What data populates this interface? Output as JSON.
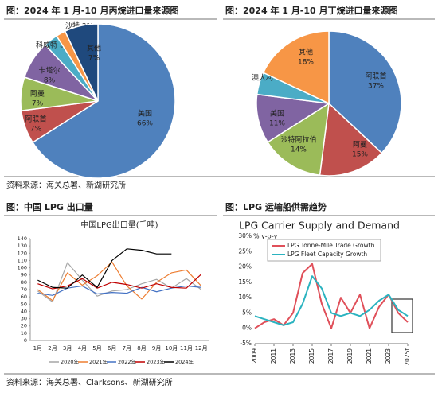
{
  "sources": [
    "资料来源：海关总署、新湖研究所",
    "资料来源：海关总署、Clarksons、新湖研究所"
  ],
  "chart_data": [
    {
      "type": "pie",
      "caption": "图：2024 年 1 月-10 月丙烷进口量来源图",
      "categories": [
        "美国",
        "阿联酋",
        "阿曼",
        "卡塔尔",
        "科威特",
        "沙特",
        "其他"
      ],
      "values": [
        66,
        7,
        7,
        8,
        3,
        2,
        7
      ],
      "value_labels": [
        "66%",
        "7%",
        "7%",
        "8%",
        "3%",
        "2%",
        "7%"
      ],
      "colors": [
        "#4f81bd",
        "#c0504d",
        "#9bbb59",
        "#8064a2",
        "#4bacc6",
        "#f79646",
        "#1f497d"
      ]
    },
    {
      "type": "pie",
      "caption": "图：2024 年 1 月-10 月丁烷进口量来源图",
      "categories": [
        "阿联酋",
        "阿曼",
        "沙特阿拉伯",
        "美国",
        "澳大利亚",
        "其他"
      ],
      "values": [
        37,
        15,
        14,
        11,
        5,
        18
      ],
      "value_labels": [
        "37%",
        "15%",
        "14%",
        "11%",
        "5%",
        "18%"
      ],
      "colors": [
        "#4f81bd",
        "#c0504d",
        "#9bbb59",
        "#8064a2",
        "#4bacc6",
        "#f79646"
      ]
    },
    {
      "type": "line",
      "caption": "图：中国 LPG 出口量",
      "title": "中国LPG出口量(千吨)",
      "categories": [
        "1月",
        "2月",
        "3月",
        "4月",
        "5月",
        "6月",
        "7月",
        "8月",
        "9月",
        "10月",
        "11月",
        "12月"
      ],
      "series": [
        {
          "name": "2020年",
          "color": "#a6a6a6",
          "values": [
            68,
            53,
            107,
            83,
            61,
            68,
            70,
            78,
            84,
            72,
            85,
            70
          ]
        },
        {
          "name": "2021年",
          "color": "#ed7d31",
          "values": [
            70,
            55,
            93,
            76,
            89,
            108,
            75,
            57,
            80,
            93,
            97,
            75
          ]
        },
        {
          "name": "2022年",
          "color": "#4472c4",
          "values": [
            65,
            62,
            72,
            75,
            64,
            66,
            65,
            73,
            67,
            72,
            75,
            73
          ]
        },
        {
          "name": "2023年",
          "color": "#c00000",
          "values": [
            78,
            71,
            75,
            85,
            72,
            80,
            77,
            72,
            78,
            73,
            72,
            91
          ]
        },
        {
          "name": "2024年",
          "color": "#000000",
          "values": [
            83,
            73,
            72,
            90,
            73,
            110,
            126,
            124,
            119,
            119,
            null,
            null
          ]
        }
      ],
      "ylim": [
        0,
        140
      ],
      "yticks": [
        0,
        10,
        20,
        30,
        40,
        50,
        60,
        70,
        80,
        90,
        100,
        110,
        120,
        130,
        140
      ]
    },
    {
      "type": "line",
      "caption": "图：LPG 运输船供需趋势",
      "title": "LPG Carrier Supply and Demand",
      "subtitle": "% y-o-y",
      "x": [
        2009,
        2010,
        2011,
        2012,
        2013,
        2014,
        2015,
        2016,
        2017,
        2018,
        2019,
        2020,
        2021,
        2022,
        2023,
        2024,
        2025
      ],
      "series": [
        {
          "name": "LPG Tonne-Mile Trade Growth",
          "color": "#e0505a",
          "values": [
            0,
            2,
            3,
            1,
            5,
            18,
            21,
            8,
            0,
            10,
            5,
            11,
            0,
            7,
            11,
            5,
            2
          ]
        },
        {
          "name": "LPG Fleet Capacity Growth",
          "color": "#2bb3c0",
          "values": [
            4,
            3,
            2,
            1,
            2,
            8,
            17,
            13,
            5,
            4,
            5,
            4,
            6,
            9,
            11,
            6,
            4
          ]
        }
      ],
      "xlim": [
        2009,
        2025
      ],
      "xticks": [
        2009,
        2011,
        2013,
        2015,
        2017,
        2019,
        2021,
        2023,
        {
          "value": 2025,
          "label": "2025f"
        }
      ],
      "ylim": [
        -5,
        30
      ],
      "yticks": [
        {
          "value": -5,
          "label": "-5%"
        },
        {
          "value": 0,
          "label": "0%"
        },
        {
          "value": 5,
          "label": "5%"
        },
        {
          "value": 10,
          "label": "10%"
        },
        {
          "value": 15,
          "label": "15%"
        },
        {
          "value": 20,
          "label": "20%"
        },
        {
          "value": 25,
          "label": "25%"
        },
        {
          "value": 30,
          "label": "30%"
        }
      ]
    }
  ]
}
